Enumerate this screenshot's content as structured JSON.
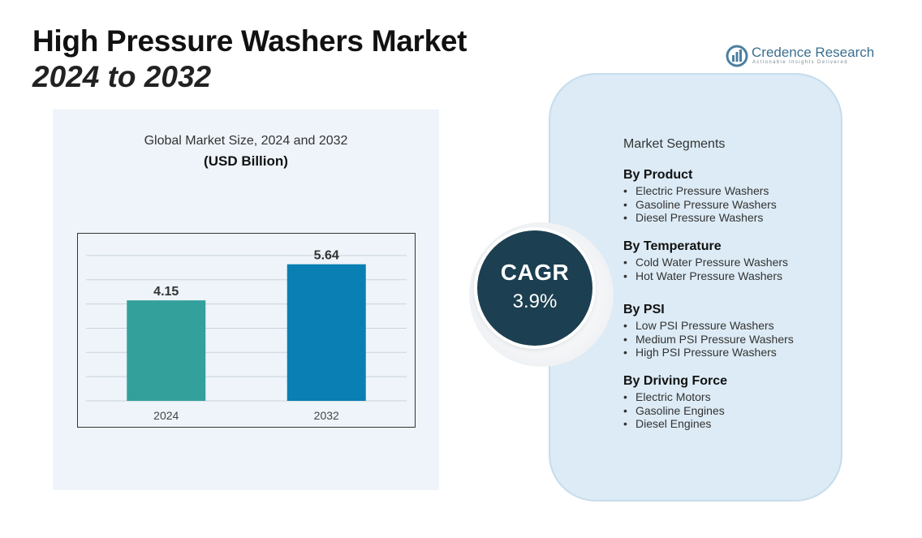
{
  "header": {
    "title": "High Pressure Washers Market",
    "subtitle": "2024 to 2032"
  },
  "brand": {
    "name": "Credence Research",
    "tagline": "Actionable Insights Delivered",
    "icon": "credence-logo-icon"
  },
  "chart_data": {
    "type": "bar",
    "title": "Global Market Size, 2024 and 2032",
    "subtitle": "(USD Billion)",
    "categories": [
      "2024",
      "2032"
    ],
    "values": [
      4.15,
      5.64
    ],
    "data_labels": [
      "4.15",
      "5.64"
    ],
    "colors": [
      "#33a09c",
      "#0a7fb3"
    ],
    "ylim": [
      0,
      6.5
    ],
    "grid": true,
    "legend": "none",
    "xlabel": "",
    "ylabel": ""
  },
  "cagr": {
    "label": "CAGR",
    "value": "3.9%"
  },
  "segments": {
    "heading": "Market Segments",
    "groups": [
      {
        "title": "By Product",
        "items": [
          "Electric Pressure Washers",
          "Gasoline Pressure Washers",
          "Diesel Pressure Washers"
        ]
      },
      {
        "title": "By Temperature",
        "items": [
          "Cold Water Pressure Washers",
          "Hot Water Pressure Washers"
        ]
      },
      {
        "title": "By PSI",
        "items": [
          "Low PSI Pressure Washers",
          "Medium PSI Pressure Washers",
          "High PSI Pressure Washers"
        ]
      },
      {
        "title": "By Driving Force",
        "items": [
          "Electric Motors",
          "Gasoline Engines",
          "Diesel Engines"
        ]
      }
    ]
  },
  "colors": {
    "panel_bg": "#eef4f9",
    "segments_bg": "#dcebf5",
    "cagr_disc": "#1c3f51"
  }
}
